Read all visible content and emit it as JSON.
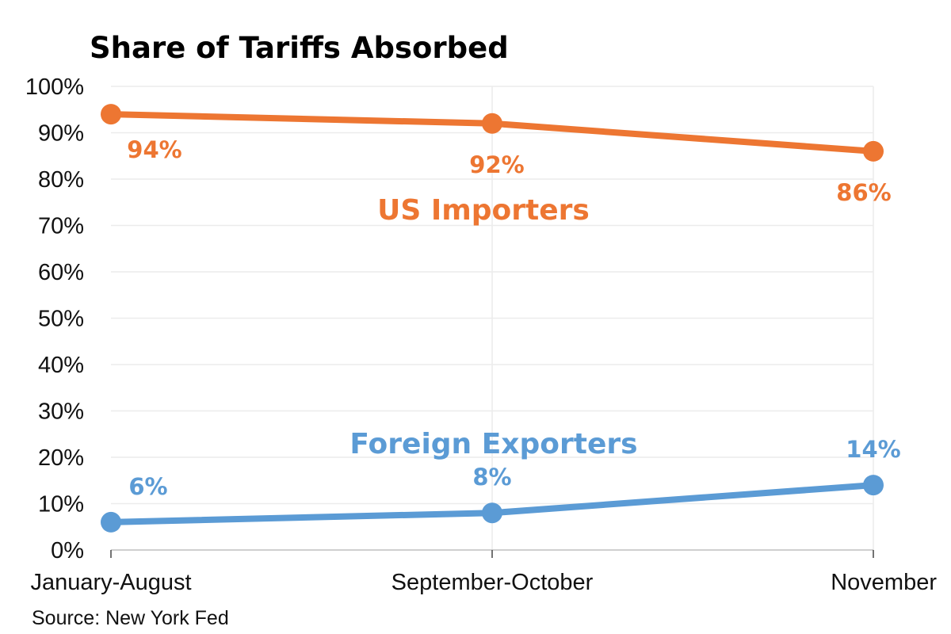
{
  "chart_data": {
    "type": "line",
    "title": "Share of Tariffs Absorbed",
    "categories": [
      "January-August",
      "September-October",
      "November"
    ],
    "ylim": [
      0,
      100
    ],
    "yticks": [
      0,
      10,
      20,
      30,
      40,
      50,
      60,
      70,
      80,
      90,
      100
    ],
    "ytick_labels": [
      "0%",
      "10%",
      "20%",
      "30%",
      "40%",
      "50%",
      "60%",
      "70%",
      "80%",
      "90%",
      "100%"
    ],
    "grid": true,
    "series": [
      {
        "name": "US Importers",
        "color": "#ED7632",
        "values": [
          94,
          92,
          86
        ],
        "labels": [
          "94%",
          "92%",
          "86%"
        ]
      },
      {
        "name": "Foreign Exporters",
        "color": "#5B9BD5",
        "values": [
          6,
          8,
          14
        ],
        "labels": [
          "6%",
          "8%",
          "14%"
        ]
      }
    ],
    "source": "Source: New York Fed"
  }
}
